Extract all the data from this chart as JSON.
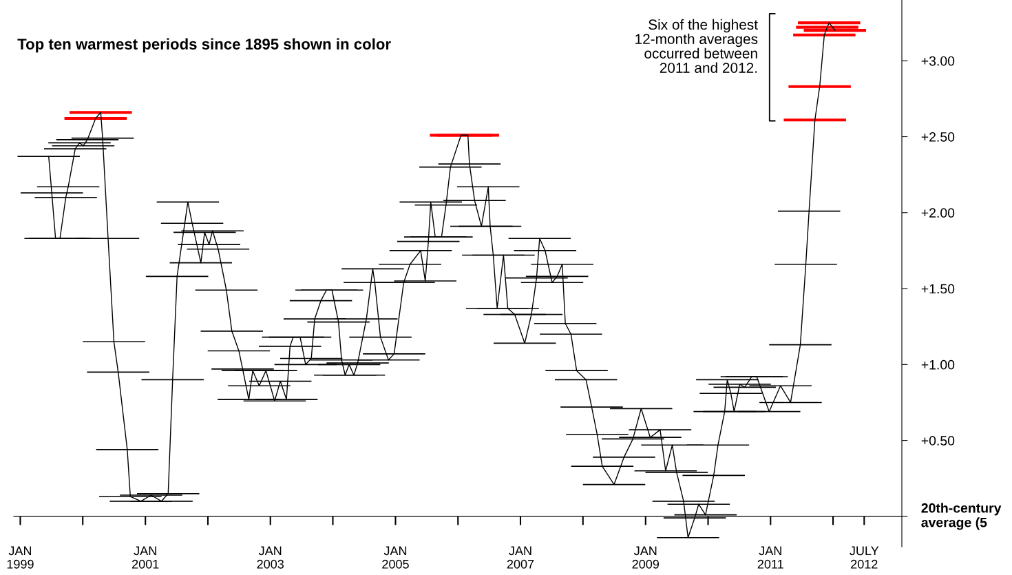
{
  "chart_data": {
    "type": "line",
    "annotations": [
      "Top ten warmest periods since 1895 shown in color",
      "Six of the highest\n12-month averages\noccurred between\n2011 and 2012."
    ],
    "x": [
      "1999-06-16",
      "1999-07-04",
      "1999-07-26",
      "1999-08-21",
      "1999-09-24",
      "1999-10-08",
      "1999-11-18",
      "1999-12-13",
      "2000-01-04",
      "2000-01-28",
      "2000-03-16",
      "2000-04-15",
      "2000-04-26",
      "2000-05-28",
      "2000-07-01",
      "2000-07-26",
      "2000-09-17",
      "2000-10-05",
      "2000-12-06",
      "2001-02-03",
      "2001-04-05",
      "2001-05-14",
      "2001-06-09",
      "2001-07-05",
      "2001-09-06",
      "2001-10-01",
      "2001-11-21",
      "2001-12-13",
      "2002-01-08",
      "2002-01-28",
      "2002-03-02",
      "2002-04-19",
      "2002-05-21",
      "2002-07-01",
      "2002-07-23",
      "2002-08-28",
      "2002-09-20",
      "2002-10-28",
      "2002-12-06",
      "2003-01-26",
      "2003-02-28",
      "2003-04-05",
      "2003-04-26",
      "2003-05-14",
      "2003-06-24",
      "2003-07-26",
      "2003-08-28",
      "2003-09-17",
      "2003-10-23",
      "2003-11-25",
      "2003-12-27",
      "2004-02-03",
      "2004-02-21",
      "2004-03-13",
      "2004-04-05",
      "2004-05-03",
      "2004-05-25",
      "2004-07-15",
      "2004-08-21",
      "2004-09-02",
      "2004-10-05",
      "2004-11-21",
      "2004-12-24",
      "2005-02-18",
      "2005-03-27",
      "2005-05-28",
      "2005-06-24",
      "2005-07-12",
      "2005-07-26",
      "2005-08-21",
      "2005-09-27",
      "2005-10-23",
      "2005-11-18",
      "2006-01-19",
      "2006-02-28",
      "2006-03-09",
      "2006-04-08",
      "2006-05-18",
      "2006-06-27",
      "2006-07-08",
      "2006-07-26",
      "2006-08-18",
      "2006-09-24",
      "2006-10-19",
      "2006-11-28",
      "2007-01-26",
      "2007-03-06",
      "2007-04-05",
      "2007-04-23",
      "2007-05-25",
      "2007-07-05",
      "2007-08-03",
      "2007-09-02",
      "2007-09-20",
      "2007-10-23",
      "2007-11-25",
      "2008-01-19",
      "2008-02-21",
      "2008-03-24",
      "2008-04-23",
      "2008-07-01",
      "2008-08-28",
      "2008-10-19",
      "2008-12-06",
      "2009-01-28",
      "2009-03-27",
      "2009-04-28",
      "2009-06-06",
      "2009-07-01",
      "2009-08-11",
      "2009-09-06",
      "2009-10-15",
      "2009-11-07",
      "2009-12-17",
      "2010-02-03",
      "2010-02-28",
      "2010-04-08",
      "2010-04-23",
      "2010-05-14",
      "2010-06-02",
      "2010-07-05",
      "2010-08-03",
      "2010-09-13",
      "2010-10-12",
      "2010-12-24",
      "2011-02-28",
      "2011-04-28",
      "2011-06-24",
      "2011-07-26",
      "2011-08-14",
      "2011-09-17",
      "2011-10-15",
      "2011-11-11",
      "2011-11-28",
      "2011-12-09",
      "2012-01-12"
    ],
    "series": [
      {
        "color": "#000000",
        "values": [
          2.37,
          2.13,
          1.83,
          1.83,
          2.1,
          2.17,
          2.42,
          2.46,
          2.44,
          2.48,
          2.62,
          2.66,
          2.49,
          1.83,
          1.15,
          0.95,
          0.44,
          0.13,
          0.1,
          0.14,
          0.1,
          0.15,
          0.9,
          1.58,
          2.07,
          1.93,
          1.67,
          1.87,
          1.79,
          1.88,
          1.76,
          1.49,
          1.22,
          1.09,
          0.97,
          0.77,
          0.96,
          0.86,
          0.96,
          0.76,
          0.89,
          0.77,
          1.12,
          1.18,
          1.18,
          1.0,
          1.04,
          1.3,
          1.42,
          1.49,
          1.49,
          1.28,
          1.03,
          0.93,
          1.0,
          0.93,
          1.01,
          1.3,
          1.63,
          1.54,
          1.18,
          1.03,
          1.07,
          1.54,
          1.66,
          1.75,
          1.55,
          1.81,
          2.07,
          1.84,
          1.84,
          2.05,
          2.3,
          2.51,
          2.51,
          2.32,
          2.08,
          1.91,
          2.17,
          1.91,
          1.72,
          1.37,
          1.72,
          1.37,
          1.33,
          1.14,
          1.33,
          1.57,
          1.83,
          1.75,
          1.54,
          1.58,
          1.66,
          1.27,
          1.2,
          0.96,
          0.9,
          0.72,
          0.54,
          0.33,
          0.21,
          0.39,
          0.51,
          0.71,
          0.52,
          0.57,
          0.3,
          0.47,
          0.29,
          0.1,
          -0.14,
          -0.01,
          0.08,
          0.01,
          0.27,
          0.47,
          0.69,
          0.9,
          0.81,
          0.69,
          0.87,
          0.85,
          0.92,
          0.92,
          0.69,
          0.86,
          0.75,
          1.13,
          1.66,
          2.01,
          2.61,
          2.83,
          3.17,
          3.22,
          3.25,
          3.2
        ],
        "xerrors": [
          182,
          182,
          182,
          182,
          182,
          182,
          182,
          182,
          182,
          182,
          182,
          182,
          182,
          182,
          182,
          182,
          182,
          182,
          182,
          182,
          182,
          182,
          182,
          182,
          182,
          182,
          182,
          182,
          182,
          182,
          182,
          182,
          182,
          182,
          182,
          182,
          182,
          182,
          182,
          182,
          182,
          182,
          182,
          182,
          182,
          182,
          182,
          182,
          182,
          182,
          182,
          182,
          182,
          182,
          182,
          182,
          182,
          182,
          182,
          182,
          182,
          182,
          182,
          182,
          182,
          182,
          182,
          182,
          182,
          182,
          182,
          182,
          182,
          182,
          182,
          182,
          182,
          182,
          182,
          182,
          182,
          182,
          182,
          182,
          182,
          182,
          182,
          182,
          182,
          182,
          182,
          182,
          182,
          182,
          182,
          182,
          182,
          182,
          182,
          182,
          182,
          182,
          182,
          182,
          182,
          182,
          182,
          182,
          182,
          182,
          182,
          182,
          182,
          182,
          182,
          182,
          182,
          182,
          182,
          182,
          182,
          182,
          182,
          182,
          182,
          182,
          182,
          182,
          182,
          182,
          182,
          182,
          182,
          182,
          182,
          182
        ],
        "colors": [
          "#000000",
          "#000000",
          "#000000",
          "#000000",
          "#000000",
          "#000000",
          "#000000",
          "#000000",
          "#000000",
          "#000000",
          "#ff0000",
          "#ff0000",
          "#000000",
          "#000000",
          "#000000",
          "#000000",
          "#000000",
          "#000000",
          "#000000",
          "#000000",
          "#000000",
          "#000000",
          "#000000",
          "#000000",
          "#000000",
          "#000000",
          "#000000",
          "#000000",
          "#000000",
          "#000000",
          "#000000",
          "#000000",
          "#000000",
          "#000000",
          "#000000",
          "#000000",
          "#000000",
          "#000000",
          "#000000",
          "#000000",
          "#000000",
          "#000000",
          "#000000",
          "#000000",
          "#000000",
          "#000000",
          "#000000",
          "#000000",
          "#000000",
          "#000000",
          "#000000",
          "#000000",
          "#000000",
          "#000000",
          "#000000",
          "#000000",
          "#000000",
          "#000000",
          "#000000",
          "#000000",
          "#000000",
          "#000000",
          "#000000",
          "#000000",
          "#000000",
          "#000000",
          "#000000",
          "#000000",
          "#000000",
          "#000000",
          "#000000",
          "#000000",
          "#000000",
          "#ff0000",
          "#ff0000",
          "#000000",
          "#000000",
          "#000000",
          "#000000",
          "#000000",
          "#000000",
          "#000000",
          "#000000",
          "#000000",
          "#000000",
          "#000000",
          "#000000",
          "#000000",
          "#000000",
          "#000000",
          "#000000",
          "#000000",
          "#000000",
          "#000000",
          "#000000",
          "#000000",
          "#000000",
          "#000000",
          "#000000",
          "#000000",
          "#000000",
          "#000000",
          "#000000",
          "#000000",
          "#000000",
          "#000000",
          "#000000",
          "#000000",
          "#000000",
          "#000000",
          "#000000",
          "#000000",
          "#000000",
          "#000000",
          "#000000",
          "#000000",
          "#000000",
          "#000000",
          "#000000",
          "#000000",
          "#000000",
          "#000000",
          "#000000",
          "#000000",
          "#000000",
          "#000000",
          "#000000",
          "#000000",
          "#000000",
          "#000000",
          "#ff0000",
          "#ff0000",
          "#ff0000",
          "#ff0000",
          "#ff0000",
          "#ff0000"
        ]
      }
    ],
    "xlim": [
      "1998-11-24",
      "2013-02-06"
    ],
    "xticks": [
      {
        "value": "1999-01-01",
        "label": "JAN\n1999"
      },
      {
        "value": "2000-01-01",
        "label": null
      },
      {
        "value": "2001-01-01",
        "label": "JAN\n2001"
      },
      {
        "value": "2002-01-01",
        "label": null
      },
      {
        "value": "2003-01-01",
        "label": "JAN\n2003"
      },
      {
        "value": "2004-01-01",
        "label": null
      },
      {
        "value": "2005-01-01",
        "label": "JAN\n2005"
      },
      {
        "value": "2006-01-01",
        "label": null
      },
      {
        "value": "2007-01-01",
        "label": "JAN\n2007"
      },
      {
        "value": "2008-01-01",
        "label": null
      },
      {
        "value": "2009-01-01",
        "label": "JAN\n2009"
      },
      {
        "value": "2010-01-01",
        "label": null
      },
      {
        "value": "2011-01-01",
        "label": "JAN\n2011"
      },
      {
        "value": "2012-01-01",
        "label": null
      },
      {
        "value": "2012-07-01",
        "label": "JULY\n2012"
      }
    ],
    "ylim": [
      -0.2,
      3.4
    ],
    "yticks": [
      {
        "value": 0,
        "label": "20th-century\naverage (5"
      },
      {
        "value": 0.5,
        "label": "+0.50"
      },
      {
        "value": 1.0,
        "label": "+1.00"
      },
      {
        "value": 1.5,
        "label": "+1.50"
      },
      {
        "value": 2.0,
        "label": "+2.00"
      },
      {
        "value": 2.5,
        "label": "+2.50"
      },
      {
        "value": 3.0,
        "label": "+3.00"
      }
    ],
    "grid": false,
    "legend": false,
    "marker": "none",
    "line_style": "solid"
  }
}
